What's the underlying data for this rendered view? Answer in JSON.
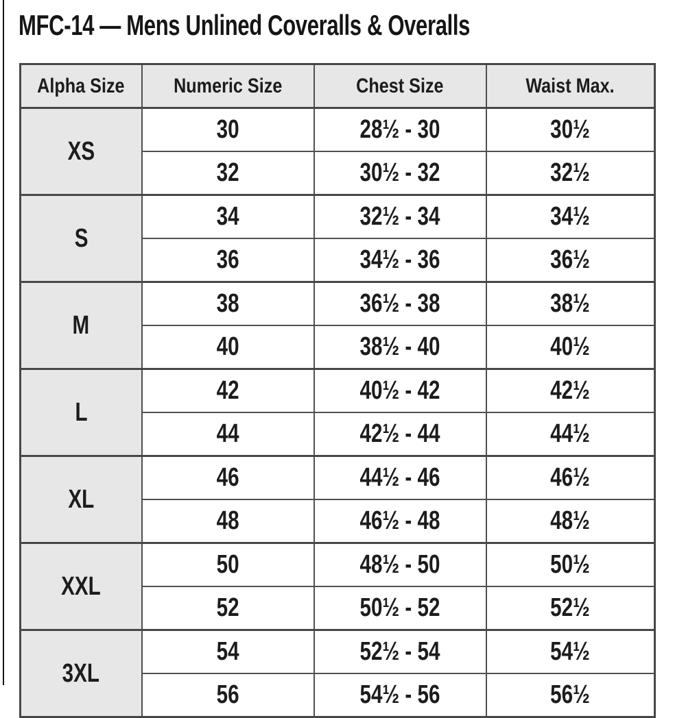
{
  "page": {
    "title": "MFC-14 — Mens Unlined Coveralls & Overalls"
  },
  "table": {
    "headers": [
      "Alpha Size",
      "Numeric Size",
      "Chest Size",
      "Waist Max."
    ],
    "groups": [
      {
        "alpha": "XS",
        "rows": [
          [
            "30",
            "28½ - 30",
            "30½"
          ],
          [
            "32",
            "30½ - 32",
            "32½"
          ]
        ]
      },
      {
        "alpha": "S",
        "rows": [
          [
            "34",
            "32½ - 34",
            "34½"
          ],
          [
            "36",
            "34½ - 36",
            "36½"
          ]
        ]
      },
      {
        "alpha": "M",
        "rows": [
          [
            "38",
            "36½ - 38",
            "38½"
          ],
          [
            "40",
            "38½ - 40",
            "40½"
          ]
        ]
      },
      {
        "alpha": "L",
        "rows": [
          [
            "42",
            "40½ - 42",
            "42½"
          ],
          [
            "44",
            "42½ - 44",
            "44½"
          ]
        ]
      },
      {
        "alpha": "XL",
        "rows": [
          [
            "46",
            "44½ - 46",
            "46½"
          ],
          [
            "48",
            "46½ - 48",
            "48½"
          ]
        ]
      },
      {
        "alpha": "XXL",
        "rows": [
          [
            "50",
            "48½ - 50",
            "50½"
          ],
          [
            "52",
            "50½ - 52",
            "52½"
          ]
        ]
      },
      {
        "alpha": "3XL",
        "rows": [
          [
            "54",
            "52½ - 54",
            "54½"
          ],
          [
            "56",
            "54½ - 56",
            "56½"
          ]
        ]
      }
    ],
    "colors": {
      "header_bg": "#e7e7e7",
      "border": "#4f4f4f",
      "text": "#1c1c1c"
    }
  }
}
